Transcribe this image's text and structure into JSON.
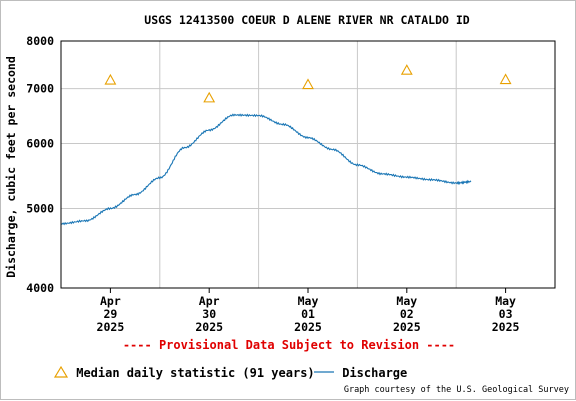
{
  "chart_data": {
    "type": "line",
    "title": "USGS 12413500 COEUR D ALENE RIVER NR CATALDO ID",
    "ylabel": "Discharge, cubic feet per second",
    "xlabel": "",
    "y_scale": "log",
    "ylim": [
      4000,
      8000
    ],
    "y_ticks": [
      {
        "value": 4000,
        "label": "4000"
      },
      {
        "value": 5000,
        "label": "5000"
      },
      {
        "value": 6000,
        "label": "6000"
      },
      {
        "value": 7000,
        "label": "7000"
      },
      {
        "value": 8000,
        "label": "8000"
      }
    ],
    "xlim": [
      0,
      5
    ],
    "x_ticks": [
      {
        "value": 0.5,
        "label": [
          "Apr",
          "29",
          "2025"
        ]
      },
      {
        "value": 1.5,
        "label": [
          "Apr",
          "30",
          "2025"
        ]
      },
      {
        "value": 2.5,
        "label": [
          "May",
          "01",
          "2025"
        ]
      },
      {
        "value": 3.5,
        "label": [
          "May",
          "02",
          "2025"
        ]
      },
      {
        "value": 4.5,
        "label": [
          "May",
          "03",
          "2025"
        ]
      }
    ],
    "grid": true,
    "series": [
      {
        "name": "Median daily statistic (91 years)",
        "type": "scatter",
        "marker": "triangle",
        "color": "#e8a000",
        "x": [
          0.5,
          1.5,
          2.5,
          3.5,
          4.5
        ],
        "values": [
          7170,
          6820,
          7080,
          7370,
          7180
        ]
      },
      {
        "name": "Discharge",
        "type": "line",
        "color": "#1a76b5",
        "x": [
          0,
          0.25,
          0.5,
          0.75,
          1.0,
          1.25,
          1.5,
          1.75,
          2.0,
          2.25,
          2.5,
          2.75,
          3.0,
          3.25,
          3.5,
          3.75,
          4.0,
          4.15
        ],
        "values": [
          4790,
          4830,
          5000,
          5200,
          5450,
          5930,
          6230,
          6500,
          6490,
          6330,
          6100,
          5900,
          5650,
          5510,
          5460,
          5420,
          5370,
          5390
        ]
      }
    ],
    "legend_position": "bottom"
  },
  "footer": {
    "provisional": "---- Provisional Data Subject to Revision ----",
    "courtesy": "Graph courtesy of the U.S. Geological Survey"
  },
  "colors": {
    "grid": "#c8c8c8",
    "axis": "#000000",
    "provisional": "#e00000"
  }
}
